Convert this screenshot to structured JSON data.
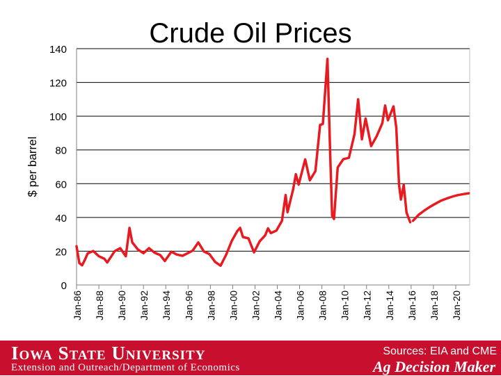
{
  "chart_data": {
    "type": "line",
    "title": "Crude Oil Prices",
    "ylabel": "$ per barrel",
    "xlabel": "",
    "ylim": [
      0,
      140
    ],
    "yticks": [
      "0",
      "20",
      "40",
      "60",
      "80",
      "100",
      "120",
      "140"
    ],
    "xlim": [
      "Jan-86",
      "Apr-21"
    ],
    "xticks": [
      "Jan-86",
      "Jan-88",
      "Jan-90",
      "Jan-92",
      "Jan-94",
      "Jan-96",
      "Jan-98",
      "Jan-00",
      "Jan-02",
      "Jan-04",
      "Jan-06",
      "Jan-08",
      "Jan-10",
      "Jan-12",
      "Jan-14",
      "Jan-16",
      "Jan-18",
      "Jan-20"
    ],
    "grid": true,
    "series": [
      {
        "color": "#e8191f",
        "style": "solid",
        "x": [
          "1986-01",
          "1986-04",
          "1986-07",
          "1986-10",
          "1987-01",
          "1987-07",
          "1988-01",
          "1988-07",
          "1988-10",
          "1989-06",
          "1989-12",
          "1990-06",
          "1990-10",
          "1991-01",
          "1991-07",
          "1992-01",
          "1992-07",
          "1993-01",
          "1993-07",
          "1993-12",
          "1994-07",
          "1995-01",
          "1995-07",
          "1996-01",
          "1996-06",
          "1996-12",
          "1997-06",
          "1997-12",
          "1998-06",
          "1998-12",
          "1999-06",
          "1999-12",
          "2000-06",
          "2000-09",
          "2000-12",
          "2001-06",
          "2001-12",
          "2002-06",
          "2002-12",
          "2003-03",
          "2003-06",
          "2003-12",
          "2004-06",
          "2004-10",
          "2004-12",
          "2005-06",
          "2005-09",
          "2005-12",
          "2006-07",
          "2006-12",
          "2007-06",
          "2007-11",
          "2008-02",
          "2008-07",
          "2008-10",
          "2008-12",
          "2009-02",
          "2009-06",
          "2009-12",
          "2010-06",
          "2010-12",
          "2011-04",
          "2011-08",
          "2011-12",
          "2012-06",
          "2012-12",
          "2013-06",
          "2013-09",
          "2013-12",
          "2014-06",
          "2014-09",
          "2014-12",
          "2015-02",
          "2015-05",
          "2015-08",
          "2015-12"
        ],
        "y": [
          22.9,
          13.0,
          11.6,
          14.9,
          18.7,
          20.1,
          17.0,
          15.5,
          13.3,
          20.0,
          21.8,
          17.0,
          33.8,
          25.2,
          21.0,
          18.8,
          21.8,
          19.1,
          17.7,
          14.2,
          19.7,
          18.0,
          17.3,
          18.9,
          20.4,
          25.2,
          19.8,
          18.3,
          13.7,
          11.4,
          17.9,
          26.1,
          32.0,
          33.8,
          28.4,
          27.6,
          19.3,
          25.8,
          29.4,
          33.5,
          30.7,
          32.2,
          38.0,
          53.3,
          43.1,
          56.5,
          65.6,
          59.4,
          74.4,
          62.0,
          67.5,
          94.8,
          95.4,
          133.9,
          76.6,
          41.1,
          39.1,
          69.6,
          74.5,
          75.3,
          89.2,
          110.0,
          86.3,
          98.6,
          82.3,
          88.2,
          95.8,
          106.3,
          97.6,
          105.8,
          93.2,
          59.3,
          50.6,
          59.3,
          42.9,
          37.2
        ]
      },
      {
        "color": "#e8191f",
        "style": "futures",
        "x": [
          "2016-03",
          "2016-09",
          "2017-03",
          "2017-09",
          "2018-03",
          "2018-09",
          "2019-03",
          "2019-09",
          "2020-03",
          "2020-09",
          "2021-03"
        ],
        "y": [
          38.0,
          41.5,
          44.0,
          46.2,
          48.1,
          49.9,
          51.2,
          52.3,
          53.2,
          53.8,
          54.3
        ]
      }
    ]
  },
  "footer": {
    "university": "Iowa State University",
    "department": "Extension and Outreach/Department of Economics",
    "sources": "Sources: EIA and CME",
    "brand": "Ag Decision Maker"
  }
}
